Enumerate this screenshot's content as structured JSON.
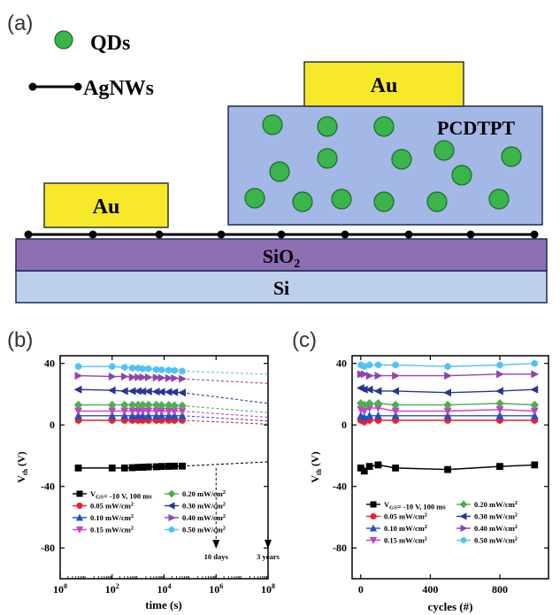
{
  "panel_a": {
    "label": "(a)",
    "legend_qds": "QDs",
    "legend_agnws": "AgNWs",
    "electrode_left": "Au",
    "electrode_top": "Au",
    "polymer": "PCDTPT",
    "sio2_main": "SiO",
    "sio2_sub": "2",
    "si": "Si",
    "colors": {
      "gold": "#f7e92a",
      "polymer": "#a3b8e6",
      "sio2": "#8f6fb4",
      "si": "#bcd0ea",
      "qd": "#39b54a"
    }
  },
  "chart_data": [
    {
      "panel": "(b)",
      "type": "scatter",
      "xscale": "log",
      "xlim": [
        1,
        100000000
      ],
      "ylim": [
        -100,
        45
      ],
      "xlabel": "time (s)",
      "ylabel_main": "V",
      "ylabel_sub": "th",
      "ylabel_unit": " (V)",
      "xticks": [
        {
          "v": 1,
          "base": "10",
          "exp": "0"
        },
        {
          "v": 100,
          "base": "10",
          "exp": "2"
        },
        {
          "v": 10000,
          "base": "10",
          "exp": "4"
        },
        {
          "v": 1000000,
          "base": "10",
          "exp": "6"
        },
        {
          "v": 100000000,
          "base": "10",
          "exp": "8"
        }
      ],
      "yticks": [
        40,
        0,
        -40,
        -80
      ],
      "x": [
        5,
        100,
        300,
        600,
        1000,
        1500,
        2500,
        5000,
        8000,
        15000,
        25000,
        50000
      ],
      "extrapolation_x": [
        50000,
        100000000
      ],
      "annotations": [
        {
          "text": "10 days",
          "x": 1000000
        },
        {
          "text": "3 years",
          "x": 100000000
        }
      ],
      "series": [
        {
          "name": "V<sub>GS</sub>= -10 V, 100 ms",
          "color": "#000000",
          "marker": "square",
          "values": [
            -28,
            -28,
            -28,
            -27.8,
            -27.6,
            -27.5,
            -27.3,
            -27.2,
            -27,
            -26.9,
            -26.8,
            -26.8
          ],
          "extrap": [
            -26.8,
            -24
          ]
        },
        {
          "name": "0.05 mW/cm<sup>2</sup>",
          "color": "#e8202a",
          "marker": "circle",
          "values": [
            3,
            3,
            3,
            3,
            3,
            3,
            3,
            3,
            3,
            3,
            3,
            3
          ],
          "extrap": [
            3,
            0.5
          ]
        },
        {
          "name": "0.10 mW/cm<sup>2</sup>",
          "color": "#2050c8",
          "marker": "triangle-up",
          "values": [
            6,
            6,
            6,
            6,
            6,
            6,
            6,
            6,
            6,
            6,
            6,
            6
          ],
          "extrap": [
            6,
            2.5
          ]
        },
        {
          "name": "0.15 mW/cm<sup>2</sup>",
          "color": "#c83cc8",
          "marker": "triangle-down",
          "values": [
            9,
            9,
            9,
            9,
            9,
            9,
            9,
            9,
            9,
            9,
            9,
            9
          ],
          "extrap": [
            9,
            5
          ]
        },
        {
          "name": "0.20 mW/cm<sup>2</sup>",
          "color": "#4caf50",
          "marker": "diamond",
          "values": [
            13,
            13,
            13,
            13,
            13,
            13,
            13,
            13,
            12.8,
            12.8,
            12.6,
            12.5
          ],
          "extrap": [
            12.5,
            8
          ]
        },
        {
          "name": "0.30 mW/cm<sup>2</sup>",
          "color": "#283593",
          "marker": "triangle-left",
          "values": [
            23,
            22.5,
            22,
            22,
            22,
            21.8,
            21.8,
            21.6,
            21.5,
            21.4,
            21.3,
            21
          ],
          "extrap": [
            21,
            14
          ]
        },
        {
          "name": "0.40 mW/cm<sup>2</sup>",
          "color": "#8e44ad",
          "marker": "triangle-right",
          "values": [
            32,
            31.5,
            31.5,
            31,
            31,
            31,
            31,
            30.8,
            30.6,
            30.5,
            30.4,
            30
          ],
          "extrap": [
            30,
            27
          ]
        },
        {
          "name": "0.50 mW/cm<sup>2</sup>",
          "color": "#4fc3f7",
          "marker": "hexagon",
          "values": [
            38,
            38,
            37.5,
            37,
            37,
            36.5,
            36.5,
            36,
            35.8,
            35.6,
            35.4,
            35
          ],
          "extrap": [
            35,
            33
          ]
        }
      ]
    },
    {
      "panel": "(c)",
      "type": "scatter",
      "xscale": "linear",
      "xlim": [
        -50,
        1080
      ],
      "ylim": [
        -100,
        45
      ],
      "xlabel": "cycles (#)",
      "ylabel_main": "V",
      "ylabel_sub": "th",
      "ylabel_unit": " (V)",
      "xticks": [
        0,
        400,
        800
      ],
      "yticks": [
        40,
        0,
        -40,
        -80
      ],
      "x": [
        0,
        20,
        50,
        100,
        200,
        500,
        800,
        1000
      ],
      "series": [
        {
          "name": "V<sub>GS</sub>= -10 V, 100 ms",
          "color": "#000000",
          "marker": "square",
          "values": [
            -28,
            -30,
            -27,
            -26,
            -28,
            -29,
            -27,
            -26
          ]
        },
        {
          "name": "0.05 mW/cm<sup>2</sup>",
          "color": "#e8202a",
          "marker": "circle",
          "values": [
            3,
            2,
            3,
            3,
            3,
            3,
            3,
            3
          ]
        },
        {
          "name": "0.10 mW/cm<sup>2</sup>",
          "color": "#2050c8",
          "marker": "triangle-up",
          "values": [
            6,
            5,
            6,
            6,
            6,
            6,
            6,
            6
          ]
        },
        {
          "name": "0.15 mW/cm<sup>2</sup>",
          "color": "#c83cc8",
          "marker": "triangle-down",
          "values": [
            10,
            9,
            11,
            11,
            9,
            9,
            10,
            9
          ]
        },
        {
          "name": "0.20 mW/cm<sup>2</sup>",
          "color": "#4caf50",
          "marker": "diamond",
          "values": [
            14,
            13,
            14,
            14,
            13,
            13,
            14,
            13
          ]
        },
        {
          "name": "0.30 mW/cm<sup>2</sup>",
          "color": "#283593",
          "marker": "triangle-left",
          "values": [
            24,
            23,
            23,
            22,
            22,
            21,
            22,
            23
          ]
        },
        {
          "name": "0.40 mW/cm<sup>2</sup>",
          "color": "#8e44ad",
          "marker": "triangle-right",
          "values": [
            33,
            33,
            32,
            32,
            32,
            32,
            33,
            33
          ]
        },
        {
          "name": "0.50 mW/cm<sup>2</sup>",
          "color": "#4fc3f7",
          "marker": "hexagon",
          "values": [
            39,
            38,
            39,
            39,
            39,
            38,
            39,
            40
          ]
        }
      ]
    }
  ]
}
